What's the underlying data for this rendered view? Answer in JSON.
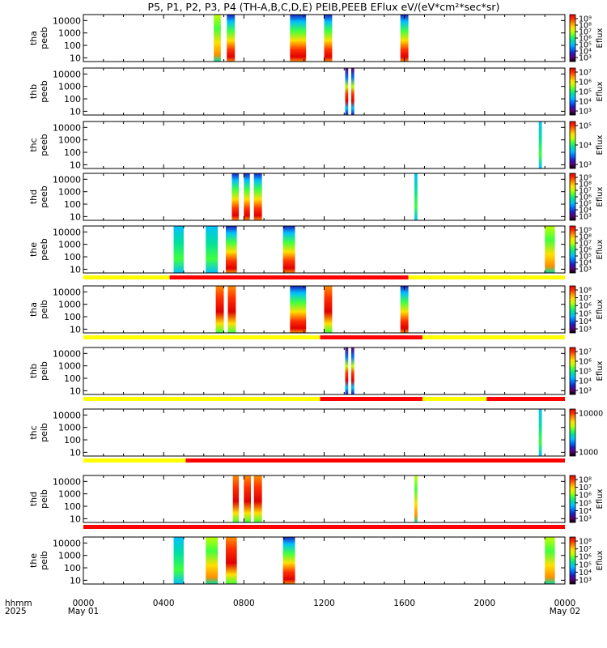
{
  "title": "P5, P1, P2, P3, P4 (TH-A,B,C,D,E) PEIB,PEEB EFlux eV/(eV*cm²*sec*sr)",
  "time_axis": {
    "row_label_1": "hhmm",
    "row_label_2": "2025",
    "ticks": [
      {
        "h": 0,
        "label": "0000",
        "date": "May 01"
      },
      {
        "h": 4,
        "label": "0400",
        "date": ""
      },
      {
        "h": 8,
        "label": "0800",
        "date": ""
      },
      {
        "h": 12,
        "label": "1200",
        "date": ""
      },
      {
        "h": 16,
        "label": "1600",
        "date": ""
      },
      {
        "h": 20,
        "label": "2000",
        "date": ""
      },
      {
        "h": 24,
        "label": "0000",
        "date": "May 02"
      }
    ],
    "range_hours": [
      0,
      24
    ]
  },
  "colors": {
    "mode_fast": "#ff0000",
    "mode_slow": "#ffff00",
    "spectrogram_scale": [
      "#000000",
      "#5a0078",
      "#1e1ebe",
      "#0070ff",
      "#00c0ff",
      "#00e0a0",
      "#40ff40",
      "#c0ff00",
      "#ffe000",
      "#ff9000",
      "#ff3000",
      "#e00000"
    ]
  },
  "chart_data": {
    "type": "heatmap",
    "x_units": "hours since 0000 May 01 2025",
    "y_scale": "log",
    "ylim": [
      5,
      30000
    ],
    "y_ticks": [
      "10",
      "100",
      "1000",
      "10000"
    ],
    "colorbar_label": "Eflux",
    "panels": [
      {
        "probe": "tha",
        "inst": "peeb",
        "colorbar_ticks": [
          "10³",
          "10⁴",
          "10⁵",
          "10⁶",
          "10⁷",
          "10⁸",
          "10⁹"
        ],
        "show_cb_label": true,
        "intervals": [
          [
            6.5,
            6.85,
            "mid"
          ],
          [
            7.15,
            7.55,
            "mixed"
          ],
          [
            10.3,
            11.1,
            "mixed"
          ],
          [
            12.0,
            12.4,
            "mixed"
          ],
          [
            15.8,
            16.2,
            "mixed"
          ]
        ]
      },
      {
        "probe": "thb",
        "inst": "peeb",
        "colorbar_ticks": [
          "10³",
          "10⁴",
          "10⁵",
          "10⁶",
          "10⁷"
        ],
        "show_cb_label": true,
        "intervals": [
          [
            13.05,
            13.2,
            "bands"
          ],
          [
            13.35,
            13.5,
            "bands"
          ]
        ]
      },
      {
        "probe": "thc",
        "inst": "peeb",
        "colorbar_ticks": [
          "10³",
          "10⁴",
          "10⁵"
        ],
        "show_cb_label": true,
        "intervals": [
          [
            22.7,
            22.85,
            "cool"
          ]
        ]
      },
      {
        "probe": "thd",
        "inst": "peeb",
        "colorbar_ticks": [
          "10³",
          "10⁴",
          "10⁵",
          "10⁶",
          "10⁷",
          "10⁸",
          "10⁹"
        ],
        "show_cb_label": true,
        "intervals": [
          [
            7.4,
            7.75,
            "mixed"
          ],
          [
            8.0,
            8.3,
            "mixed"
          ],
          [
            8.5,
            8.9,
            "mixed"
          ],
          [
            16.5,
            16.65,
            "cool"
          ]
        ]
      },
      {
        "probe": "the",
        "inst": "peeb",
        "colorbar_ticks": [
          "10³",
          "10⁴",
          "10⁵",
          "10⁶",
          "10⁷",
          "10⁸",
          "10⁹"
        ],
        "show_cb_label": true,
        "intervals": [
          [
            4.5,
            5.0,
            "cool"
          ],
          [
            6.1,
            6.7,
            "cool"
          ],
          [
            7.1,
            7.65,
            "mixed"
          ],
          [
            9.95,
            10.55,
            "mixed"
          ],
          [
            23.0,
            23.5,
            "mid"
          ]
        ]
      },
      {
        "probe": "tha",
        "inst": "peib",
        "colorbar_ticks": [
          "10³",
          "10⁴",
          "10⁵",
          "10⁶",
          "10⁷",
          "10⁸"
        ],
        "show_cb_label": true,
        "intervals": [
          [
            6.6,
            7.0,
            "hot"
          ],
          [
            7.2,
            7.6,
            "hot"
          ],
          [
            10.3,
            11.1,
            "mixed"
          ],
          [
            12.0,
            12.4,
            "hot"
          ],
          [
            15.8,
            16.2,
            "mixed"
          ]
        ]
      },
      {
        "probe": "thb",
        "inst": "peib",
        "colorbar_ticks": [
          "10³",
          "10⁴",
          "10⁵",
          "10⁶",
          "10⁷"
        ],
        "show_cb_label": true,
        "intervals": [
          [
            13.05,
            13.2,
            "bands"
          ],
          [
            13.35,
            13.5,
            "bands"
          ]
        ]
      },
      {
        "probe": "thc",
        "inst": "peib",
        "colorbar_ticks": [
          "1000",
          "10000"
        ],
        "show_cb_label": false,
        "intervals": [
          [
            22.7,
            22.85,
            "cool"
          ]
        ]
      },
      {
        "probe": "thd",
        "inst": "peib",
        "colorbar_ticks": [
          "10³",
          "10⁴",
          "10⁵",
          "10⁶",
          "10⁷",
          "10⁸"
        ],
        "show_cb_label": true,
        "intervals": [
          [
            7.45,
            7.75,
            "hot"
          ],
          [
            8.0,
            8.35,
            "hot"
          ],
          [
            8.5,
            8.9,
            "hot"
          ],
          [
            16.5,
            16.65,
            "mid"
          ]
        ]
      },
      {
        "probe": "the",
        "inst": "peib",
        "colorbar_ticks": [
          "10³",
          "10⁴",
          "10⁵",
          "10⁶",
          "10⁷",
          "10⁸"
        ],
        "show_cb_label": true,
        "intervals": [
          [
            4.5,
            5.0,
            "cool"
          ],
          [
            6.1,
            6.7,
            "mid"
          ],
          [
            7.1,
            7.65,
            "hot"
          ],
          [
            9.95,
            10.55,
            "mixed"
          ],
          [
            23.0,
            23.5,
            "mid"
          ]
        ]
      }
    ],
    "mode_bars": [
      {
        "after_panel": 4,
        "segments": [
          [
            0,
            4.3,
            "slow"
          ],
          [
            4.3,
            16.2,
            "fast"
          ],
          [
            16.2,
            24,
            "slow"
          ]
        ]
      },
      {
        "after_panel": 5,
        "segments": [
          [
            0,
            11.8,
            "slow"
          ],
          [
            11.8,
            16.9,
            "fast"
          ],
          [
            16.9,
            24,
            "slow"
          ]
        ]
      },
      {
        "after_panel": 6,
        "segments": [
          [
            0,
            11.8,
            "slow"
          ],
          [
            11.8,
            16.9,
            "fast"
          ],
          [
            16.9,
            20.1,
            "slow"
          ],
          [
            20.1,
            24,
            "fast"
          ]
        ]
      },
      {
        "after_panel": 7,
        "segments": [
          [
            0,
            5.1,
            "slow"
          ],
          [
            5.1,
            24,
            "fast"
          ]
        ]
      },
      {
        "after_panel": 8,
        "segments": [
          [
            0,
            24,
            "fast"
          ]
        ]
      }
    ]
  }
}
